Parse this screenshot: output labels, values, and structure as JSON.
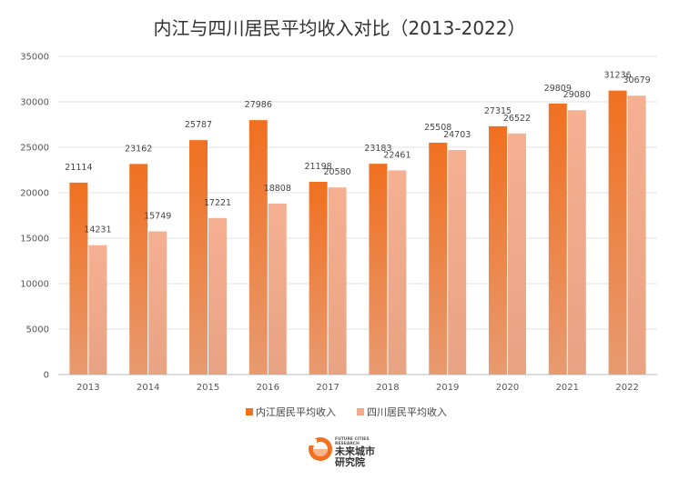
{
  "chart_data": {
    "type": "bar",
    "title": "内江与四川居民平均收入对比（2013-2022）",
    "categories": [
      "2013",
      "2014",
      "2015",
      "2016",
      "2017",
      "2018",
      "2019",
      "2020",
      "2021",
      "2022"
    ],
    "series": [
      {
        "name": "内江居民平均收入",
        "color": "#f07020",
        "values": [
          21114,
          23162,
          25787,
          27986,
          21198,
          23183,
          25508,
          27315,
          29809,
          31236
        ]
      },
      {
        "name": "四川居民平均收入",
        "color": "#f4a98a",
        "values": [
          14231,
          15749,
          17221,
          18808,
          20580,
          22461,
          24703,
          26522,
          29080,
          30679
        ]
      }
    ],
    "ylim": [
      0,
      35000
    ],
    "yticks": [
      0,
      5000,
      10000,
      15000,
      20000,
      25000,
      30000,
      35000
    ],
    "grid": true,
    "legend_position": "bottom"
  },
  "logo": {
    "top_line1": "FUTURE CITIES",
    "top_line2": "RESEARCH",
    "name_line1": "未来城市",
    "name_line2": "研究院",
    "accent": "#f07020"
  }
}
